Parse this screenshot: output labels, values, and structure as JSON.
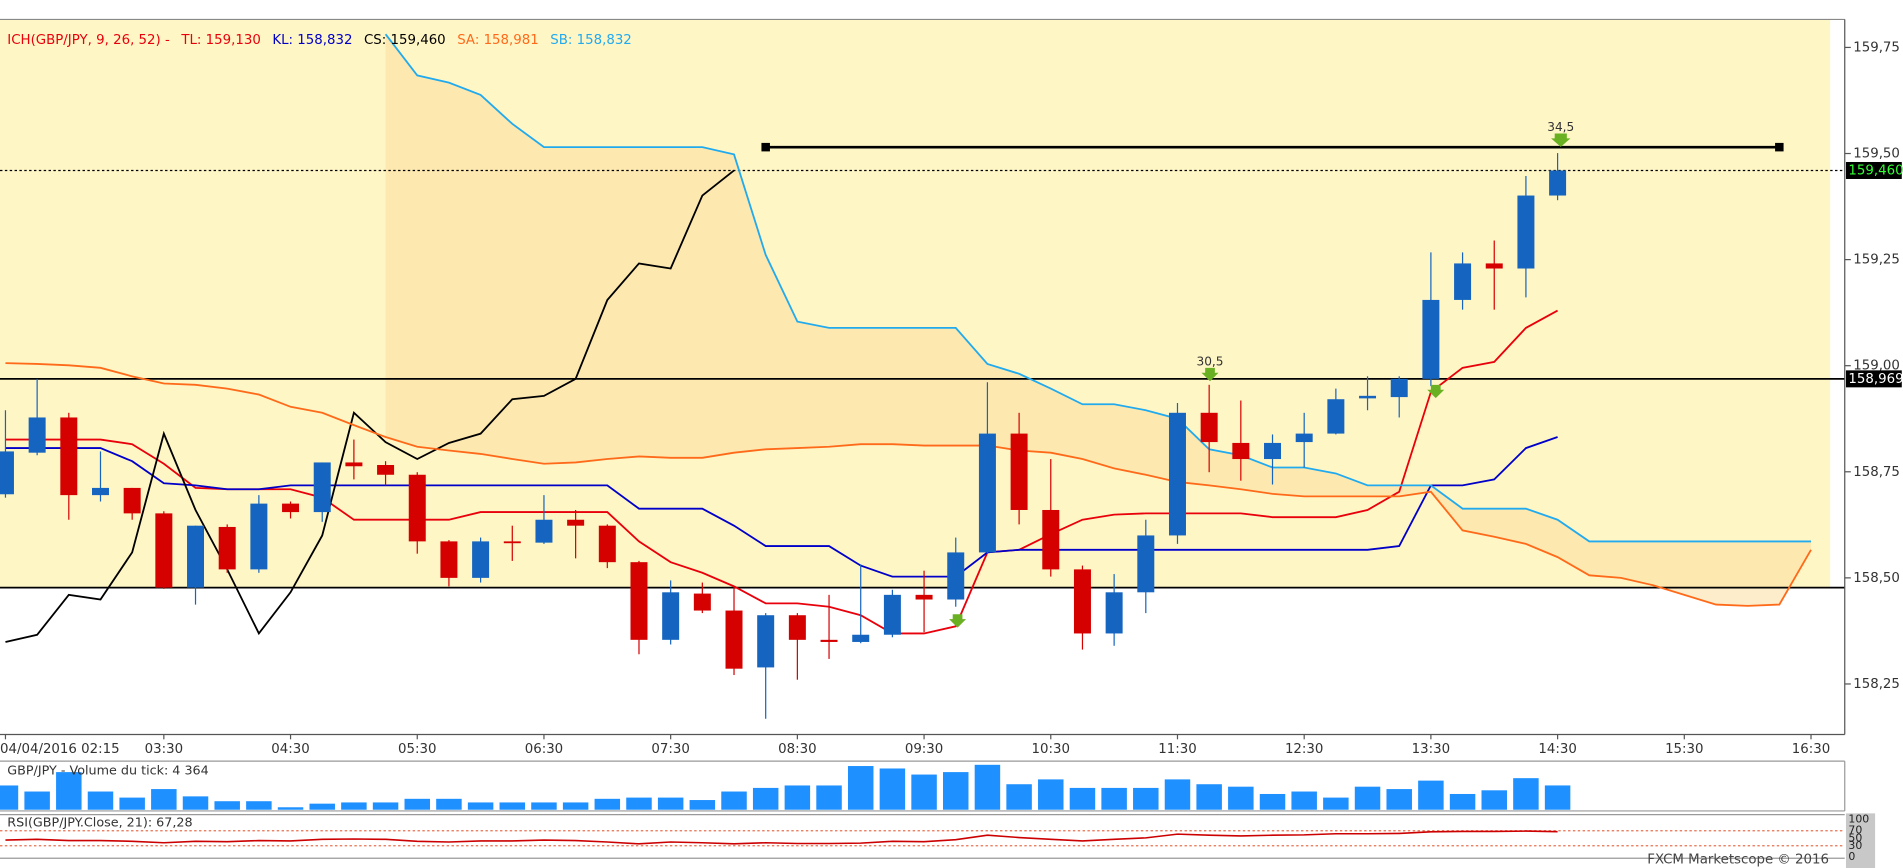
{
  "chart_data": {
    "type": "candlestick",
    "indicator": "ICH(GBP/JPY, 9, 26, 52) -",
    "categories": [
      "04/04/2016 02:15",
      null,
      null,
      null,
      null,
      "03:30",
      null,
      null,
      null,
      "04:30",
      null,
      null,
      null,
      "05:30",
      null,
      null,
      null,
      "06:30",
      null,
      null,
      null,
      "07:30",
      null,
      null,
      null,
      "08:30",
      null,
      null,
      null,
      "09:30",
      null,
      null,
      null,
      "10:30",
      null,
      null,
      null,
      "11:30",
      null,
      null,
      null,
      "12:30",
      null,
      null,
      null,
      "13:30",
      null,
      null,
      null,
      "14:30",
      null,
      null,
      null,
      "15:30",
      null,
      null,
      null,
      "16:30"
    ],
    "open": [
      158.697,
      158.795,
      158.878,
      158.695,
      158.712,
      158.652,
      158.477,
      158.62,
      158.52,
      158.675,
      158.655,
      158.772,
      158.766,
      158.743,
      158.586,
      158.5,
      158.586,
      158.583,
      158.637,
      158.623,
      158.537,
      158.354,
      158.463,
      158.423,
      158.289,
      158.412,
      158.354,
      158.349,
      158.366,
      158.46,
      158.449,
      158.56,
      158.84,
      158.66,
      158.52,
      158.369,
      158.466,
      158.6,
      158.889,
      158.818,
      158.78,
      158.82,
      158.84,
      158.923,
      158.926,
      158.969,
      159.155,
      159.241,
      159.229,
      159.401,
      null,
      null,
      null,
      null,
      null,
      null,
      null,
      null
    ],
    "high": [
      158.895,
      158.969,
      158.889,
      158.798,
      158.712,
      158.657,
      158.623,
      158.626,
      158.695,
      158.68,
      158.772,
      158.826,
      158.775,
      158.749,
      158.589,
      158.595,
      158.623,
      158.695,
      158.66,
      158.626,
      158.54,
      158.494,
      158.489,
      158.48,
      158.417,
      158.417,
      158.46,
      158.532,
      158.472,
      158.517,
      158.595,
      158.961,
      158.889,
      158.78,
      158.529,
      158.509,
      158.637,
      158.912,
      158.955,
      158.918,
      158.838,
      158.889,
      158.946,
      158.975,
      158.975,
      159.267,
      159.267,
      159.295,
      159.447,
      159.501,
      null,
      null,
      null,
      null,
      null,
      null,
      null,
      null
    ],
    "low": [
      158.689,
      158.789,
      158.637,
      158.68,
      158.637,
      158.474,
      158.437,
      158.512,
      158.512,
      158.64,
      158.632,
      158.732,
      158.718,
      158.557,
      158.48,
      158.489,
      158.54,
      158.58,
      158.546,
      158.523,
      158.32,
      158.343,
      158.417,
      158.271,
      158.168,
      158.26,
      158.309,
      158.346,
      158.36,
      158.372,
      158.432,
      158.557,
      158.626,
      158.503,
      158.331,
      158.34,
      158.417,
      158.58,
      158.749,
      158.729,
      158.72,
      158.76,
      158.838,
      158.895,
      158.878,
      158.952,
      159.132,
      159.132,
      159.161,
      159.39,
      null,
      null,
      null,
      null,
      null,
      null,
      null,
      null
    ],
    "close": [
      158.798,
      158.878,
      158.695,
      158.712,
      158.652,
      158.477,
      158.623,
      158.52,
      158.675,
      158.655,
      158.772,
      158.763,
      158.743,
      158.586,
      158.5,
      158.586,
      158.583,
      158.637,
      158.623,
      158.537,
      158.354,
      158.466,
      158.423,
      158.286,
      158.412,
      158.354,
      158.349,
      158.366,
      158.46,
      158.449,
      158.56,
      158.84,
      158.66,
      158.52,
      158.369,
      158.466,
      158.6,
      158.889,
      158.82,
      158.78,
      158.818,
      158.84,
      158.921,
      158.929,
      158.969,
      159.155,
      159.241,
      159.229,
      159.401,
      159.46,
      null,
      null,
      null,
      null,
      null,
      null,
      null,
      null
    ],
    "up_color": "#1565c0",
    "down_color": "#d50000",
    "series": [
      {
        "name": "TL: 159,130",
        "color": "#e8000b",
        "values": [
          158.826,
          158.826,
          158.826,
          158.826,
          158.815,
          158.769,
          158.712,
          158.709,
          158.709,
          158.709,
          158.689,
          158.637,
          158.637,
          158.637,
          158.637,
          158.655,
          158.655,
          158.655,
          158.655,
          158.655,
          158.586,
          158.537,
          158.512,
          158.48,
          158.44,
          158.44,
          158.432,
          158.412,
          158.369,
          158.369,
          158.386,
          158.56,
          158.566,
          158.603,
          158.637,
          158.649,
          158.652,
          158.652,
          158.652,
          158.652,
          158.643,
          158.643,
          158.643,
          158.66,
          158.703,
          158.938,
          158.995,
          159.009,
          159.089,
          159.13,
          null,
          null,
          null,
          null,
          null,
          null,
          null,
          null
        ]
      },
      {
        "name": "KL: 158,832",
        "color": "#0000c8",
        "values": [
          158.806,
          158.806,
          158.806,
          158.806,
          158.775,
          158.723,
          158.718,
          158.709,
          158.709,
          158.718,
          158.718,
          158.718,
          158.718,
          158.718,
          158.718,
          158.718,
          158.718,
          158.718,
          158.718,
          158.718,
          158.663,
          158.663,
          158.663,
          158.623,
          158.575,
          158.575,
          158.575,
          158.529,
          158.503,
          158.503,
          158.503,
          158.56,
          158.566,
          158.566,
          158.566,
          158.566,
          158.566,
          158.566,
          158.566,
          158.566,
          158.566,
          158.566,
          158.566,
          158.566,
          158.575,
          158.718,
          158.718,
          158.732,
          158.806,
          158.832,
          null,
          null,
          null,
          null,
          null,
          null,
          null,
          null
        ]
      },
      {
        "name": "CS: 159,460",
        "color": "#000000",
        "values": [
          158.349,
          158.366,
          158.46,
          158.449,
          158.56,
          158.84,
          158.66,
          158.52,
          158.369,
          158.466,
          158.6,
          158.889,
          158.82,
          158.78,
          158.818,
          158.84,
          158.921,
          158.929,
          158.969,
          159.155,
          159.241,
          159.229,
          159.401,
          159.46,
          null,
          null,
          null,
          null,
          null,
          null,
          null,
          null,
          null,
          null,
          null,
          null,
          null,
          null,
          null,
          null,
          null,
          null,
          null,
          null,
          null,
          null,
          null,
          null,
          null,
          null,
          null,
          null,
          null,
          null,
          null,
          null,
          null,
          null
        ]
      },
      {
        "name": "SA: 158,981",
        "color": "#ff6a1a",
        "values": [
          159.006,
          159.004,
          159.001,
          158.995,
          158.975,
          158.958,
          158.955,
          158.946,
          158.932,
          158.903,
          158.889,
          158.86,
          158.832,
          158.809,
          158.8,
          158.792,
          158.78,
          158.769,
          158.772,
          158.78,
          158.786,
          158.783,
          158.783,
          158.795,
          158.803,
          158.806,
          158.809,
          158.815,
          158.815,
          158.812,
          158.812,
          158.812,
          158.8,
          158.795,
          158.78,
          158.758,
          158.743,
          158.726,
          158.718,
          158.709,
          158.698,
          158.692,
          158.692,
          158.692,
          158.692,
          158.703,
          158.612,
          158.597,
          158.58,
          158.549,
          158.506,
          158.5,
          158.483,
          158.46,
          158.437,
          158.434,
          158.437,
          158.566
        ]
      },
      {
        "name": "SB: 158,832",
        "color": "#22aaee",
        "values": [
          null,
          null,
          null,
          null,
          null,
          null,
          null,
          null,
          null,
          null,
          null,
          null,
          159.781,
          159.684,
          159.667,
          159.638,
          159.57,
          159.515,
          159.515,
          159.515,
          159.515,
          159.515,
          159.515,
          159.498,
          159.261,
          159.104,
          159.089,
          159.089,
          159.089,
          159.089,
          159.089,
          159.004,
          158.981,
          158.946,
          158.909,
          158.909,
          158.895,
          158.875,
          158.803,
          158.789,
          158.76,
          158.76,
          158.746,
          158.718,
          158.718,
          158.718,
          158.663,
          158.663,
          158.663,
          158.637,
          158.586,
          158.586,
          158.586,
          158.586,
          158.586,
          158.586,
          158.586,
          158.586
        ]
      }
    ],
    "cloud_color": "#fbdf9e",
    "zone_color": "#fff6c6",
    "ylim": [
      158.131,
      159.816
    ],
    "yticks": [
      {
        "value": 158.25,
        "label": "158,25"
      },
      {
        "value": 158.5,
        "label": "158,50"
      },
      {
        "value": 158.75,
        "label": "158,75"
      },
      {
        "value": 159.0,
        "label": "159,00"
      },
      {
        "value": 159.25,
        "label": "159,25"
      },
      {
        "value": 159.5,
        "label": "159,50"
      },
      {
        "value": 159.75,
        "label": "159,75"
      }
    ],
    "grid": false,
    "levels": [
      {
        "value": 159.46,
        "label": "159,460",
        "style": "dotted",
        "text_color": "#33ff33"
      },
      {
        "value": 158.969,
        "label": "158,969",
        "style": "solid",
        "text_color": "#ffffff"
      },
      {
        "value": 158.477,
        "style": "solid"
      }
    ],
    "trendline": {
      "values": [
        159.515,
        159.515
      ],
      "color": "#000000"
    },
    "annotations": [
      "34,5",
      "30,5"
    ],
    "volume": {
      "label": "GBP/JPY - Volume du tick: 4 364",
      "color": "#1e90ff",
      "values": [
        4360,
        3270,
        6760,
        3270,
        2180,
        3710,
        2400,
        1530,
        1530,
        440,
        1090,
        1310,
        1310,
        1960,
        1960,
        1310,
        1310,
        1310,
        1310,
        1960,
        2180,
        2180,
        1740,
        3270,
        3920,
        4360,
        4360,
        7850,
        7410,
        6320,
        6760,
        8070,
        4580,
        5450,
        3920,
        3920,
        3920,
        5450,
        4580,
        4140,
        2830,
        3270,
        2180,
        4140,
        3710,
        5230,
        2830,
        3490,
        5670,
        4364,
        null,
        null,
        null,
        null,
        null,
        null,
        null,
        null
      ]
    },
    "rsi": {
      "label": "RSI(GBP/JPY.Close, 21): 67,28",
      "color": "#cc0000",
      "ylim": [
        0,
        100
      ],
      "yticks": [
        100,
        70,
        50,
        30,
        0
      ],
      "levels": [
        70,
        30
      ],
      "values": [
        45,
        47,
        44,
        44,
        42,
        38,
        42,
        41,
        44,
        43,
        47,
        48,
        47,
        42,
        40,
        43,
        43,
        45,
        44,
        40,
        35,
        40,
        38,
        35,
        38,
        36,
        36,
        37,
        42,
        41,
        46,
        58,
        52,
        47,
        43,
        47,
        51,
        61,
        58,
        56,
        58,
        59,
        62,
        62,
        63,
        67,
        68,
        68,
        69,
        67.28,
        null,
        null,
        null,
        null,
        null,
        null,
        null,
        null
      ]
    },
    "credit": "FXCM Marketscope © 2016"
  }
}
